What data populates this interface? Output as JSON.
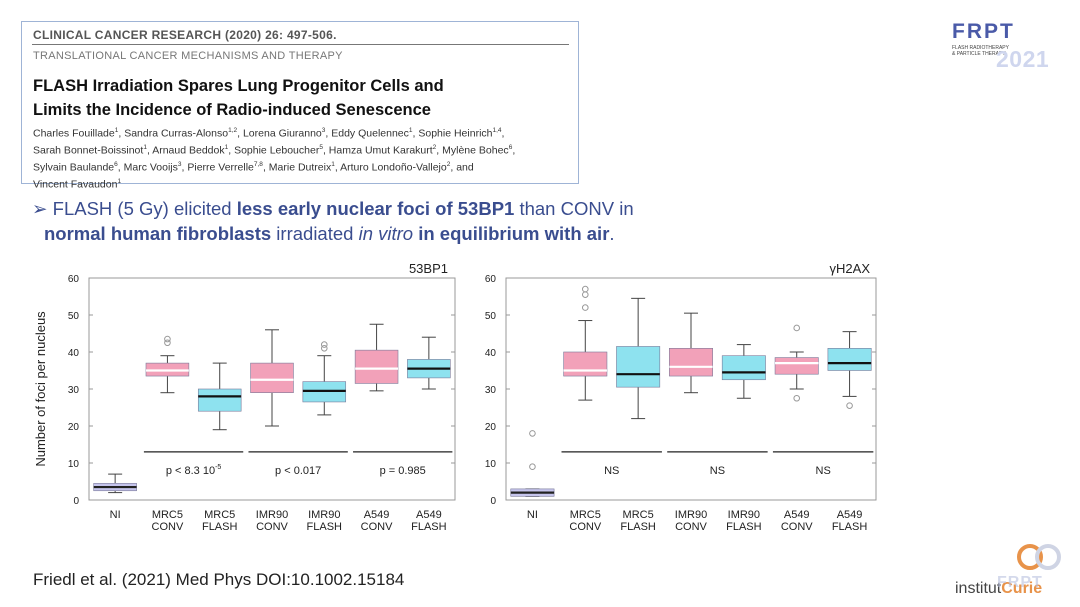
{
  "paper": {
    "journal": "CLINICAL CANCER RESEARCH (2020) 26: 497-506.",
    "section": "TRANSLATIONAL CANCER MECHANISMS AND THERAPY",
    "title_line1": "FLASH Irradiation Spares Lung Progenitor Cells and",
    "title_line2": "Limits the Incidence of Radio-induced Senescence",
    "authors": [
      [
        {
          "t": "Charles Fouillade",
          "s": "1"
        },
        {
          "t": "Sandra Curras-Alonso",
          "s": "1,2"
        },
        {
          "t": "Lorena Giuranno",
          "s": "3"
        },
        {
          "t": "Eddy Quelennec",
          "s": "1"
        },
        {
          "t": "Sophie Heinrich",
          "s": "1,4"
        }
      ],
      [
        {
          "t": "Sarah Bonnet-Boissinot",
          "s": "1"
        },
        {
          "t": "Arnaud Beddok",
          "s": "1"
        },
        {
          "t": "Sophie Leboucher",
          "s": "5"
        },
        {
          "t": "Hamza Umut Karakurt",
          "s": "2"
        },
        {
          "t": "Mylène Bohec",
          "s": "6"
        }
      ],
      [
        {
          "t": "Sylvain Baulande",
          "s": "6"
        },
        {
          "t": "Marc Vooijs",
          "s": "3"
        },
        {
          "t": "Pierre Verrelle",
          "s": "7,8"
        },
        {
          "t": "Marie Dutreix",
          "s": "1"
        },
        {
          "t": "Arturo Londoño-Vallejo",
          "s": "2"
        }
      ],
      [
        {
          "t": "Vincent Favaudon",
          "s": "1"
        }
      ]
    ]
  },
  "logo_top": {
    "name": "FRPT",
    "sub": "FLASH RADIOTHERAPY & PARTICLE THERAPY",
    "year": "2021"
  },
  "bullet": {
    "arrow": "➢",
    "p1": " FLASH (5 Gy) elicited ",
    "b1": "less early nuclear foci of 53BP1",
    "p2": " than CONV in",
    "b2": "normal human fibroblasts",
    "p3": " irradiated ",
    "i1": "in vitro",
    "p4": " ",
    "b3": "in equilibrium with air",
    "p5": "."
  },
  "citation": "Friedl et al. (2021) Med Phys DOI:10.1002.15184",
  "logo_bottom": {
    "text1": "institut",
    "text2": "Curie",
    "watermark": "FRPT"
  },
  "colors": {
    "conv": "#f2a1b9",
    "flash": "#8ee2ef",
    "ni": "#c5c4ec",
    "accent": "#3a4d8f"
  },
  "chart_data": [
    {
      "type": "box",
      "title": "53BP1",
      "ylabel": "Number of foci per nucleus",
      "ylim": [
        0,
        60
      ],
      "yticks": [
        0,
        10,
        20,
        30,
        40,
        50,
        60
      ],
      "categories": [
        "NI",
        "MRC5 CONV",
        "MRC5 FLASH",
        "IMR90 CONV",
        "IMR90 FLASH",
        "A549 CONV",
        "A549 FLASH"
      ],
      "boxes": [
        {
          "group": "ni",
          "min": 2,
          "q1": 2.5,
          "median": 3.5,
          "q3": 4.5,
          "max": 7,
          "outliers": []
        },
        {
          "group": "conv",
          "min": 29,
          "q1": 33.5,
          "median": 35,
          "q3": 37,
          "max": 39,
          "outliers": [
            42.5,
            43.5
          ]
        },
        {
          "group": "flash",
          "min": 19,
          "q1": 24,
          "median": 28,
          "q3": 30,
          "max": 37,
          "outliers": []
        },
        {
          "group": "conv",
          "min": 20,
          "q1": 29,
          "median": 32.5,
          "q3": 37,
          "max": 46,
          "outliers": []
        },
        {
          "group": "flash",
          "min": 23,
          "q1": 26.5,
          "median": 29.5,
          "q3": 32,
          "max": 39,
          "outliers": [
            41,
            42
          ]
        },
        {
          "group": "conv",
          "min": 29.5,
          "q1": 31.5,
          "median": 35.5,
          "q3": 40.5,
          "max": 47.5,
          "outliers": []
        },
        {
          "group": "flash",
          "min": 30,
          "q1": 33,
          "median": 35.5,
          "q3": 38,
          "max": 44,
          "outliers": []
        }
      ],
      "comparisons": [
        {
          "from": 1,
          "to": 2,
          "label": "p <  8.3 10",
          "sup": "-5"
        },
        {
          "from": 3,
          "to": 4,
          "label": "p < 0.017",
          "sup": ""
        },
        {
          "from": 5,
          "to": 6,
          "label": "p = 0.985",
          "sup": ""
        }
      ]
    },
    {
      "type": "box",
      "title": "γH2AX",
      "ylabel": "",
      "ylim": [
        0,
        60
      ],
      "yticks": [
        0,
        10,
        20,
        30,
        40,
        50,
        60
      ],
      "categories": [
        "NI",
        "MRC5 CONV",
        "MRC5 FLASH",
        "IMR90 CONV",
        "IMR90 FLASH",
        "A549 CONV",
        "A549 FLASH"
      ],
      "boxes": [
        {
          "group": "ni",
          "min": 1,
          "q1": 1,
          "median": 2,
          "q3": 3,
          "max": 3,
          "outliers": [
            9,
            18
          ]
        },
        {
          "group": "conv",
          "min": 27,
          "q1": 33.5,
          "median": 35,
          "q3": 40,
          "max": 48.5,
          "outliers": [
            52,
            55.5,
            57
          ]
        },
        {
          "group": "flash",
          "min": 22,
          "q1": 30.5,
          "median": 34,
          "q3": 41.5,
          "max": 54.5,
          "outliers": []
        },
        {
          "group": "conv",
          "min": 29,
          "q1": 33.5,
          "median": 36,
          "q3": 41,
          "max": 50.5,
          "outliers": []
        },
        {
          "group": "flash",
          "min": 27.5,
          "q1": 32.5,
          "median": 34.5,
          "q3": 39,
          "max": 42,
          "outliers": []
        },
        {
          "group": "conv",
          "min": 30,
          "q1": 34,
          "median": 37,
          "q3": 38.5,
          "max": 40,
          "outliers": [
            27.5,
            46.5
          ]
        },
        {
          "group": "flash",
          "min": 28,
          "q1": 35,
          "median": 37,
          "q3": 41,
          "max": 45.5,
          "outliers": [
            25.5
          ]
        }
      ],
      "comparisons": [
        {
          "from": 1,
          "to": 2,
          "label": "NS",
          "sup": ""
        },
        {
          "from": 3,
          "to": 4,
          "label": "NS",
          "sup": ""
        },
        {
          "from": 5,
          "to": 6,
          "label": "NS",
          "sup": ""
        }
      ]
    }
  ]
}
